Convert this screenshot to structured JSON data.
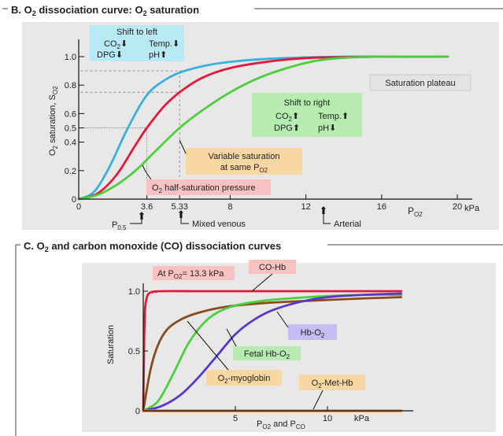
{
  "colors": {
    "panel_bg": "#e8e8e8",
    "blue": "#39b1dd",
    "red": "#e3193b",
    "green": "#4ccf3c",
    "brown": "#8a4b1c",
    "violet": "#5a37c8",
    "orange": "#ec7a1c",
    "box_cyan": "#b8eaf6",
    "box_green": "#b6ecb0",
    "box_orange": "#f9d7a2",
    "box_pink": "#f9c2c2",
    "box_violet": "#c3bdf3",
    "box_grey": "#e3e3e3"
  },
  "panel_b": {
    "title_prefix": "B. O",
    "title_sub": "2",
    "title_suffix": " dissociation curve: O",
    "title_sub2": "2",
    "title_suffix2": " saturation",
    "ylabel_main": "O",
    "ylabel_sub": "2",
    "ylabel_rest": " saturation, S",
    "ylabel_sub2": "O2",
    "xlabel_main": "P",
    "xlabel_sub": "O2",
    "x_unit": "kPa",
    "y_ticks": [
      "1.0",
      "0.8",
      "0.6",
      "0.5",
      "0.4",
      "0.2",
      "0"
    ],
    "x_ticks": [
      "3.6",
      "5.33",
      "8",
      "12",
      "16",
      "20"
    ],
    "p50_main": "P",
    "p50_sub": "0.5",
    "mixed_venous": "Mixed venous",
    "arterial": "Arterial",
    "left_shift": {
      "title": "Shift to left",
      "line1a": "CO",
      "line1a_sub": "2",
      "line1a_arrow": "⬇",
      "line1b": "Temp.",
      "line1b_arrow": "⬇",
      "line2a": "DPG",
      "line2a_arrow": "⬇",
      "line2b": "pH",
      "line2b_arrow": "⬆"
    },
    "right_shift": {
      "title": "Shift to right",
      "line1a": "CO",
      "line1a_sub": "2",
      "line1a_arrow": "⬆",
      "line1b": "Temp.",
      "line1b_arrow": "⬆",
      "line2a": "DPG",
      "line2a_arrow": "⬆",
      "line2b": "pH",
      "line2b_arrow": "⬇"
    },
    "saturation_plateau": "Saturation plateau",
    "variable_line1": "Variable saturation",
    "variable_line2": "at same P",
    "variable_sub": "O2",
    "half_sat_main": "O",
    "half_sat_sub": "2",
    "half_sat_rest": " half-saturation pressure",
    "curves": [
      {
        "color": "blue",
        "p50": 2.6,
        "n": 2.6,
        "x": [
          0,
          0.8,
          1.6,
          2.6,
          3.6,
          4.6,
          5.6,
          7.0,
          8.5,
          10,
          12,
          14,
          16,
          19.5
        ],
        "y": [
          0,
          0.05,
          0.22,
          0.5,
          0.73,
          0.84,
          0.9,
          0.945,
          0.97,
          0.985,
          0.995,
          1.0,
          1.0,
          1.0
        ]
      },
      {
        "color": "red",
        "p50": 3.6,
        "n": 2.7,
        "x": [
          0,
          1,
          2,
          3,
          3.6,
          4.5,
          5.33,
          6.5,
          8,
          10,
          12,
          13.3,
          16,
          19.5
        ],
        "y": [
          0,
          0.04,
          0.17,
          0.38,
          0.5,
          0.65,
          0.75,
          0.85,
          0.92,
          0.965,
          0.99,
          0.995,
          1.0,
          1.0
        ]
      },
      {
        "color": "green",
        "p50": 5.33,
        "n": 2.5,
        "x": [
          0,
          1,
          2,
          3,
          4,
          5.33,
          6.5,
          8,
          9.5,
          11,
          12.5,
          13.8,
          16,
          19.5
        ],
        "y": [
          0,
          0.03,
          0.1,
          0.2,
          0.33,
          0.5,
          0.62,
          0.75,
          0.85,
          0.92,
          0.97,
          0.99,
          1.0,
          1.0
        ]
      }
    ]
  },
  "panel_c": {
    "title_prefix": "C. O",
    "title_sub": "2",
    "title_suffix": " and carbon monoxide (CO) dissociation curves",
    "ylabel": "Saturation",
    "y_ticks": [
      "1.0",
      "0.5",
      "0"
    ],
    "x_ticks": [
      "5",
      "10"
    ],
    "x_unit": "kPa",
    "xlabel_a": "P",
    "xlabel_a_sub": "O2",
    "xlabel_and": " and P",
    "xlabel_b_sub": "CO",
    "at_po2_main": "At P",
    "at_po2_sub": "O2",
    "at_po2_rest": "= 13.3 kPa",
    "co_hb": "CO-Hb",
    "hb_o2": "Hb-O",
    "hb_o2_sub": "2",
    "fetal_main": "Fetal Hb-O",
    "fetal_sub": "2",
    "myoglobin_main": "O",
    "myoglobin_sub": "2",
    "myoglobin_rest": "-myoglobin",
    "methb_main": "O",
    "methb_sub": "2",
    "methb_rest": "-Met-Hb",
    "curves": [
      {
        "color": "red",
        "x": [
          0,
          0.05,
          0.1,
          0.2,
          0.4,
          1,
          3,
          6,
          10,
          14
        ],
        "y": [
          0,
          0.6,
          0.85,
          0.95,
          0.99,
          1.0,
          1.0,
          1.0,
          1.0,
          1.0
        ]
      },
      {
        "color": "brown",
        "x": [
          0,
          0.4,
          0.8,
          1.3,
          2,
          3,
          4.5,
          6.5,
          9,
          12,
          14
        ],
        "y": [
          0,
          0.35,
          0.55,
          0.68,
          0.76,
          0.82,
          0.87,
          0.9,
          0.92,
          0.94,
          0.95
        ]
      },
      {
        "color": "green",
        "x": [
          0,
          0.8,
          1.6,
          2.4,
          3.2,
          4,
          5,
          6.5,
          8,
          10,
          12,
          14
        ],
        "y": [
          0,
          0.08,
          0.3,
          0.55,
          0.72,
          0.82,
          0.88,
          0.92,
          0.94,
          0.96,
          0.97,
          0.97
        ]
      },
      {
        "color": "violet",
        "x": [
          0,
          1,
          2,
          3,
          4,
          5,
          6,
          7,
          8.5,
          10,
          12,
          14
        ],
        "y": [
          0,
          0.04,
          0.13,
          0.28,
          0.46,
          0.64,
          0.76,
          0.84,
          0.91,
          0.95,
          0.97,
          0.98
        ]
      },
      {
        "color": "orange",
        "x": [
          0,
          14
        ],
        "y": [
          0,
          0
        ]
      }
    ]
  }
}
